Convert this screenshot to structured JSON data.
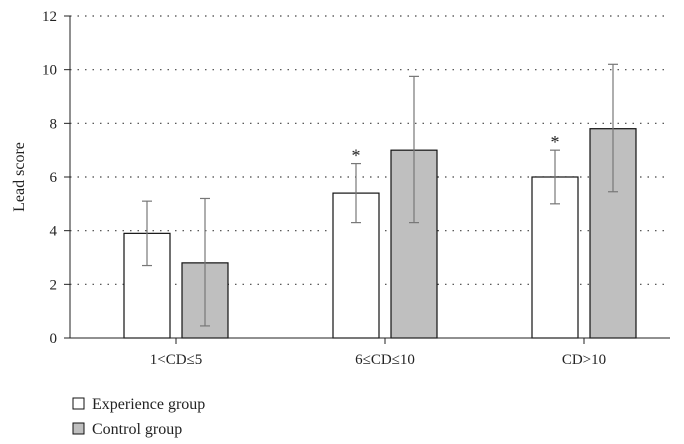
{
  "chart_data": {
    "type": "bar",
    "ylabel": "Lead score",
    "xlabel": "",
    "ylim": [
      0,
      12
    ],
    "yticks": [
      0,
      2,
      4,
      6,
      8,
      10,
      12
    ],
    "grid": "horizontal dotted",
    "legend_position": "bottom-left",
    "categories": [
      "1<CD≤5",
      "6≤CD≤10",
      "CD>10"
    ],
    "series": [
      {
        "name": "Experience group",
        "color": "#ffffff",
        "values": [
          3.9,
          5.4,
          6.0
        ],
        "error_low": [
          2.7,
          4.3,
          5.0
        ],
        "error_high": [
          5.1,
          6.5,
          7.0
        ],
        "significance": [
          "",
          "*",
          "*"
        ]
      },
      {
        "name": "Control group",
        "color": "#bfbfbf",
        "values": [
          2.8,
          7.0,
          7.8
        ],
        "error_low": [
          0.45,
          4.3,
          5.45
        ],
        "error_high": [
          5.2,
          9.75,
          10.2
        ],
        "significance": [
          "",
          "",
          ""
        ]
      }
    ]
  }
}
